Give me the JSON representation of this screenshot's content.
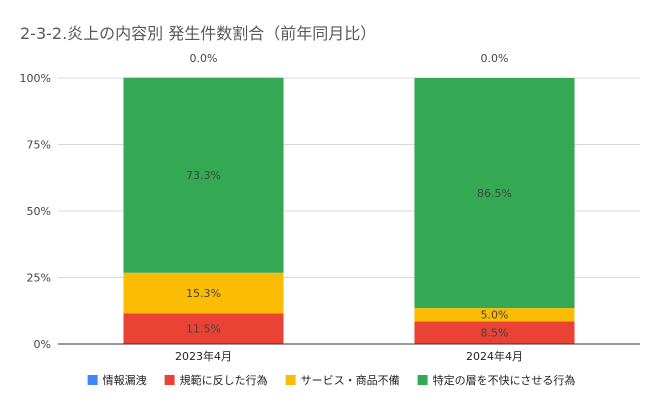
{
  "chart_data": {
    "type": "bar",
    "stacked": true,
    "percent": true,
    "title": "2-3-2.炎上の内容別 発生件数割合（前年同月比）",
    "xlabel": "",
    "ylabel": "",
    "ylim": [
      0,
      100
    ],
    "yticks": [
      "0%",
      "25%",
      "50%",
      "75%",
      "100%"
    ],
    "categories": [
      "2023年4月",
      "2024年4月"
    ],
    "series": [
      {
        "name": "情報漏洩",
        "color": "#4285f4",
        "values": [
          0.0,
          0.0
        ],
        "labels": [
          "0.0%",
          "0.0%"
        ]
      },
      {
        "name": "規範に反した行為",
        "color": "#ea4335",
        "values": [
          11.5,
          8.5
        ],
        "labels": [
          "11.5%",
          "8.5%"
        ]
      },
      {
        "name": "サービス・商品不備",
        "color": "#fbbc04",
        "values": [
          15.3,
          5.0
        ],
        "labels": [
          "15.3%",
          "5.0%"
        ]
      },
      {
        "name": "特定の層を不快にさせる行為",
        "color": "#34a853",
        "values": [
          73.3,
          86.5
        ],
        "labels": [
          "73.3%",
          "86.5%"
        ]
      }
    ],
    "grid": true,
    "legend_position": "bottom"
  }
}
